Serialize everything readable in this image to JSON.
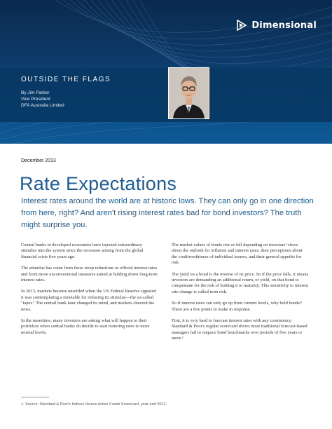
{
  "brand": {
    "name": "Dimensional",
    "color": "#ffffff",
    "icon": "dimensional-logo-icon"
  },
  "header": {
    "section": "OUTSIDE THE FLAGS",
    "author_lines": [
      "By Jim Parker",
      "Vice President",
      "DFA Australia Limited"
    ],
    "background": "#0b3c6c"
  },
  "article": {
    "date": "December 2013",
    "title": "Rate Expectations",
    "lede": "Interest rates around the world are at historic lows. They can only go in one direction from here, right? And aren't rising interest rates bad for bond investors? The truth might surprise you.",
    "accent_color": "#1d5c99",
    "left_column": [
      "Central banks in developed economies have injected extraordinary stimulus into the system since the recession arising from the global financial crisis five years ago.",
      "The stimulus has come from these steep reductions in official interest rates and from more unconventional measures aimed at holding down long-term interest rates.",
      "In 2013, markets became unsettled when the US Federal Reserve signaled it was contemplating a timetable for reducing its stimulus—the so-called \"taper.\" The central bank later changed its mind, and markets cheered the news.",
      "In the meantime, many investors are asking what will happen to their portfolios when central banks do decide to start restoring rates to more normal levels."
    ],
    "right_column": [
      "The market values of bonds rise or fall depending on investors' views about the outlook for inflation and interest rates, their perceptions about the creditworthiness of individual issuers, and their general appetite for risk.",
      "The yield on a bond is the inverse of its price. So if the price falls, it means investors are demanding an additional return, or yield, on that bond to compensate for the risk of holding it to maturity. This sensitivity to interest rate change is called term risk.",
      "So if interest rates can only go up from current levels, why hold bonds? There are a few points to make in response.",
      "First, it is very hard to forecast interest rates with any consistency. Standard & Poor's regular scorecard shows most traditional forecast-based managers fail to outpace bond benchmarks over periods of five years or more.¹"
    ]
  },
  "footnote": "1. Source: Standard & Poor's Indices Versus Active Funds Scorecard, year-end 2012."
}
